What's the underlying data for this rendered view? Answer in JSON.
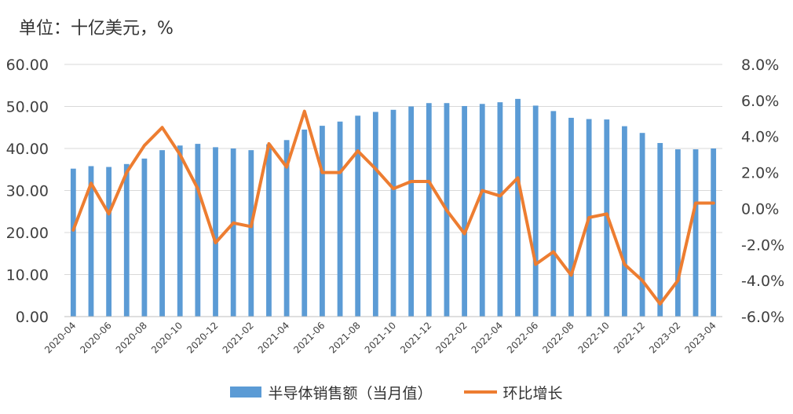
{
  "chart_data": {
    "type": "bar",
    "unit_label": "单位：十亿美元，%",
    "categories": [
      "2020-04",
      "2020-05",
      "2020-06",
      "2020-07",
      "2020-08",
      "2020-09",
      "2020-10",
      "2020-11",
      "2020-12",
      "2021-01",
      "2021-02",
      "2021-03",
      "2021-04",
      "2021-05",
      "2021-06",
      "2021-07",
      "2021-08",
      "2021-09",
      "2021-10",
      "2021-11",
      "2021-12",
      "2022-01",
      "2022-02",
      "2022-03",
      "2022-04",
      "2022-05",
      "2022-06",
      "2022-07",
      "2022-08",
      "2022-09",
      "2022-10",
      "2022-11",
      "2022-12",
      "2023-01",
      "2023-02",
      "2023-03",
      "2023-04"
    ],
    "x_tick_labels": [
      "2020-04",
      "2020-06",
      "2020-08",
      "2020-10",
      "2020-12",
      "2021-02",
      "2021-04",
      "2021-06",
      "2021-08",
      "2021-10",
      "2021-12",
      "2022-02",
      "2022-04",
      "2022-06",
      "2022-08",
      "2022-10",
      "2022-12",
      "2023-02",
      "2023-04"
    ],
    "series": [
      {
        "name": "半导体销售额（当月值）",
        "type": "bar",
        "axis": "left",
        "color": "#5b9bd5",
        "values": [
          35.2,
          35.8,
          35.6,
          36.3,
          37.6,
          39.6,
          40.7,
          41.1,
          40.3,
          40.0,
          39.6,
          41.0,
          42.0,
          44.5,
          45.4,
          46.4,
          47.8,
          48.7,
          49.2,
          50.0,
          50.8,
          50.8,
          50.1,
          50.6,
          51.0,
          51.8,
          50.2,
          48.9,
          47.3,
          47.0,
          46.9,
          45.3,
          43.7,
          41.3,
          39.8,
          39.8,
          40.0
        ]
      },
      {
        "name": "环比增长",
        "type": "line",
        "axis": "right",
        "color": "#ed7d31",
        "values": [
          -1.2,
          1.4,
          -0.3,
          2.0,
          3.5,
          4.5,
          3.0,
          1.1,
          -1.9,
          -0.8,
          -1.0,
          3.6,
          2.3,
          5.4,
          2.0,
          2.0,
          3.2,
          2.2,
          1.1,
          1.5,
          1.5,
          -0.1,
          -1.4,
          1.0,
          0.7,
          1.7,
          -3.1,
          -2.4,
          -3.7,
          -0.5,
          -0.3,
          -3.1,
          -4.0,
          -5.3,
          -4.0,
          0.3,
          0.3
        ]
      }
    ],
    "y_left": {
      "range": [
        0,
        60
      ],
      "ticks": [
        "0.00",
        "10.00",
        "20.00",
        "30.00",
        "40.00",
        "50.00",
        "60.00"
      ]
    },
    "y_right": {
      "range": [
        -6,
        8
      ],
      "ticks": [
        "-6.0%",
        "-4.0%",
        "-2.0%",
        "0.0%",
        "2.0%",
        "4.0%",
        "6.0%",
        "8.0%"
      ]
    },
    "grid": true,
    "legend_position": "bottom"
  }
}
